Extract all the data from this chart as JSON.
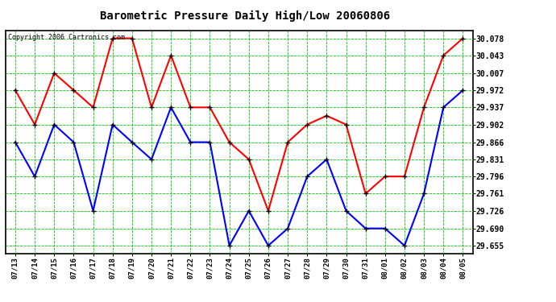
{
  "title": "Barometric Pressure Daily High/Low 20060806",
  "copyright": "Copyright 2006 Cartronics.com",
  "dates": [
    "07/13",
    "07/14",
    "07/15",
    "07/16",
    "07/17",
    "07/18",
    "07/19",
    "07/20",
    "07/21",
    "07/22",
    "07/23",
    "07/24",
    "07/25",
    "07/26",
    "07/27",
    "07/28",
    "07/29",
    "07/30",
    "07/31",
    "08/01",
    "08/02",
    "08/03",
    "08/04",
    "08/05"
  ],
  "high": [
    29.972,
    29.902,
    30.007,
    29.972,
    29.937,
    30.078,
    30.078,
    29.937,
    30.043,
    29.937,
    29.937,
    29.866,
    29.831,
    29.726,
    29.866,
    29.902,
    29.92,
    29.902,
    29.761,
    29.796,
    29.796,
    29.937,
    30.043,
    30.078
  ],
  "low": [
    29.866,
    29.796,
    29.902,
    29.866,
    29.726,
    29.902,
    29.866,
    29.831,
    29.937,
    29.866,
    29.866,
    29.655,
    29.726,
    29.655,
    29.69,
    29.796,
    29.831,
    29.726,
    29.69,
    29.69,
    29.655,
    29.761,
    29.937,
    29.972
  ],
  "high_color": "#ff0000",
  "low_color": "#0000ff",
  "marker_color": "#000000",
  "bg_color": "#ffffff",
  "grid_color": "#00cc00",
  "title_color": "#000000",
  "copyright_color": "#000000",
  "ylim_min": 29.6385,
  "ylim_max": 30.0945,
  "yticks": [
    29.655,
    29.69,
    29.726,
    29.761,
    29.796,
    29.831,
    29.866,
    29.902,
    29.937,
    29.972,
    30.007,
    30.043,
    30.078
  ],
  "marker_size": 5,
  "linewidth": 1.5,
  "fig_width": 6.9,
  "fig_height": 3.75,
  "dpi": 100
}
